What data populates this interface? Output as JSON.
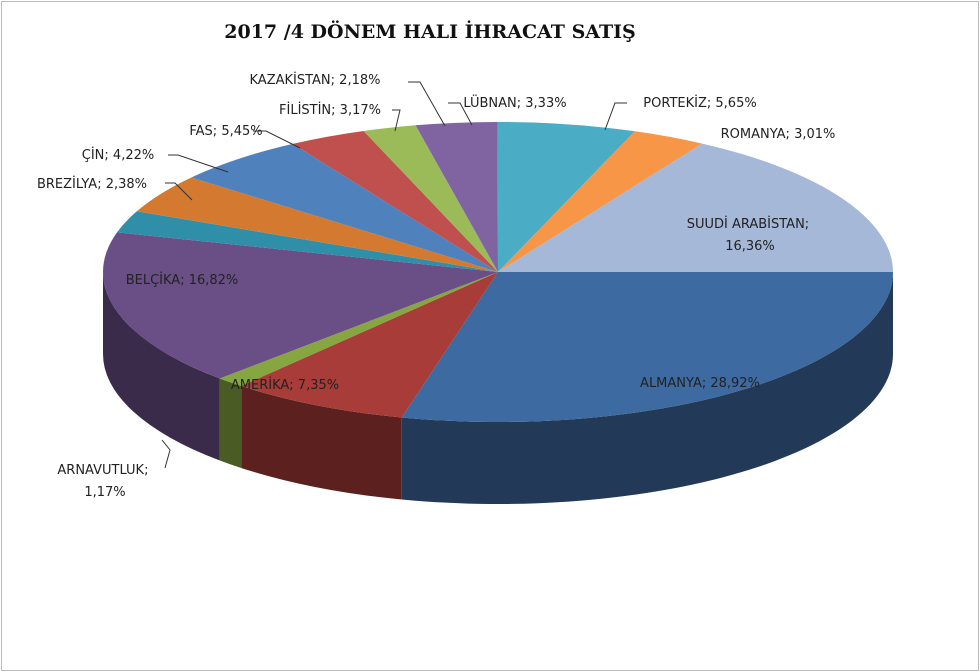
{
  "chart_data": {
    "type": "pie3d",
    "title": "2017 /4 DÖNEM HALI İHRACAT SATIŞ",
    "label_separator": "; ",
    "categories": [
      "ALMANYA",
      "AMERİKA",
      "ARNAVUTLUK",
      "BELÇİKA",
      "BREZİLYA",
      "ÇİN",
      "FAS",
      "FİLİSTİN",
      "KAZAKİSTAN",
      "LÜBNAN",
      "PORTEKİZ",
      "ROMANYA",
      "SUUDİ ARABİSTAN"
    ],
    "values": [
      28.92,
      7.35,
      1.17,
      16.82,
      2.38,
      4.22,
      5.45,
      3.17,
      2.18,
      3.33,
      5.65,
      3.01,
      16.36
    ],
    "value_labels": [
      "28,92%",
      "7,35%",
      "1,17%",
      "16,82%",
      "2,38%",
      "4,22%",
      "5,45%",
      "3,17%",
      "2,18%",
      "3,33%",
      "5,65%",
      "3,01%",
      "16,36%"
    ],
    "colors": [
      "#3d6aa0",
      "#a83c38",
      "#86a642",
      "#6a4f86",
      "#2f8fa8",
      "#d47a30",
      "#4f81bd",
      "#c0504d",
      "#9bbb59",
      "#8064a2",
      "#4bacc6",
      "#f79646",
      "#a5b8d8"
    ]
  }
}
